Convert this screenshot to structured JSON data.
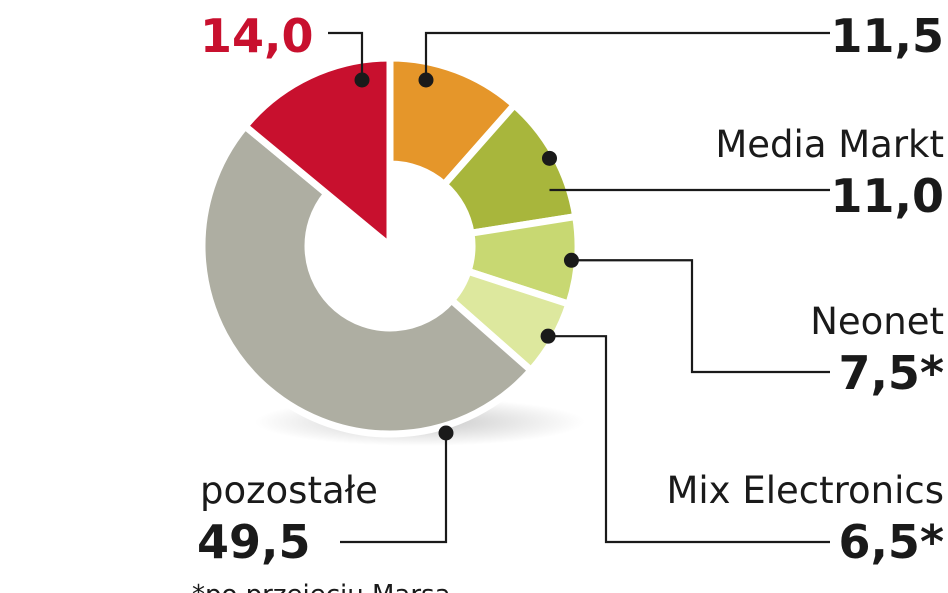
{
  "chart_data": {
    "type": "pie",
    "donut": true,
    "start_angle_deg": 0,
    "direction": "clockwise",
    "slices": [
      {
        "label": "",
        "value": 11.5,
        "value_text": "11,5",
        "color": "#e5962a"
      },
      {
        "label": "Media Markt",
        "value": 11.0,
        "value_text": "11,0",
        "color": "#a8b63c"
      },
      {
        "label": "Neonet",
        "value": 7.5,
        "value_text": "7,5*",
        "color": "#c8d872"
      },
      {
        "label": "Mix Electronics",
        "value": 6.5,
        "value_text": "6,5*",
        "color": "#dde89e"
      },
      {
        "label": "pozostałe",
        "value": 49.5,
        "value_text": "49,5",
        "color": "#aeaea2"
      },
      {
        "label": "",
        "value": 14.0,
        "value_text": "14,0",
        "color": "#c8102e"
      }
    ],
    "footnote": "*po przejęciu Marsa"
  }
}
